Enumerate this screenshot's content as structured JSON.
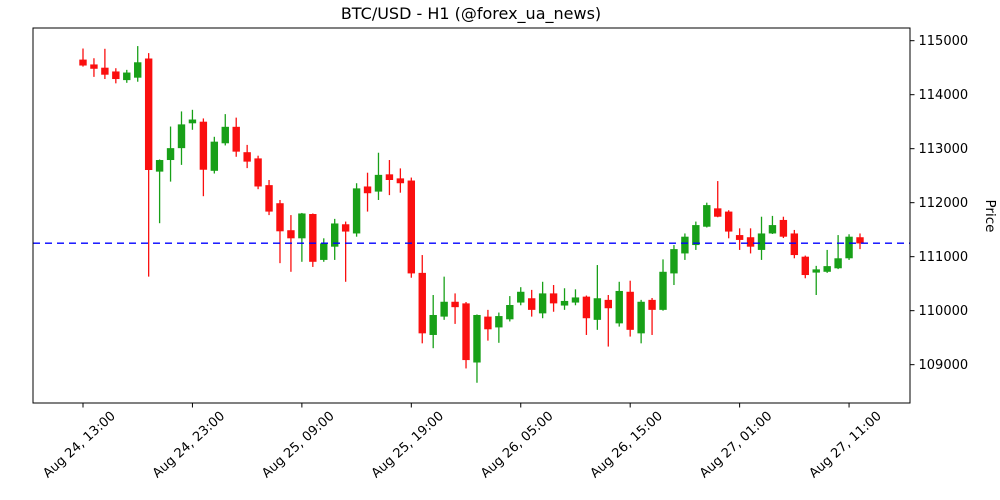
{
  "chart_data": {
    "type": "candlestick",
    "title": "BTC/USD - H1 (@forex_ua_news)",
    "ylabel": "Price",
    "timeframe": "H1",
    "grid": false,
    "y_ticks": [
      109000,
      110000,
      111000,
      112000,
      113000,
      114000,
      115000
    ],
    "y_range": [
      108290,
      115235
    ],
    "x_tick_indices": [
      0,
      10,
      20,
      30,
      40,
      50,
      60,
      70
    ],
    "x_tick_labels": [
      "Aug 24, 13:00",
      "Aug 24, 23:00",
      "Aug 25, 09:00",
      "Aug 25, 19:00",
      "Aug 26, 05:00",
      "Aug 26, 15:00",
      "Aug 27, 01:00",
      "Aug 27, 11:00"
    ],
    "hline": {
      "value": 111250,
      "color": "#0000ff",
      "style": "dashed"
    },
    "colors": {
      "up": "#18a018",
      "down": "#fa0f0f",
      "axis": "#000000",
      "background": "#ffffff"
    },
    "candles_format": [
      "open",
      "high",
      "low",
      "close"
    ],
    "candles": [
      [
        114650,
        114855,
        114520,
        114540
      ],
      [
        114560,
        114675,
        114330,
        114480
      ],
      [
        114500,
        114850,
        114290,
        114370
      ],
      [
        114430,
        114490,
        114210,
        114290
      ],
      [
        114270,
        114460,
        114220,
        114410
      ],
      [
        114315,
        114900,
        114240,
        114600
      ],
      [
        114670,
        114770,
        110630,
        112605
      ],
      [
        112575,
        112800,
        111620,
        112790
      ],
      [
        112790,
        113410,
        112390,
        113010
      ],
      [
        113010,
        113690,
        112700,
        113450
      ],
      [
        113470,
        113720,
        113350,
        113540
      ],
      [
        113500,
        113560,
        112120,
        112610
      ],
      [
        112590,
        113220,
        112540,
        113130
      ],
      [
        113100,
        113640,
        113060,
        113405
      ],
      [
        113405,
        113575,
        112850,
        112945
      ],
      [
        112935,
        113070,
        112640,
        112760
      ],
      [
        112820,
        112870,
        112250,
        112300
      ],
      [
        112325,
        112420,
        111770,
        111835
      ],
      [
        111990,
        112050,
        110880,
        111470
      ],
      [
        111490,
        111770,
        110720,
        111340
      ],
      [
        111340,
        111810,
        110905,
        111800
      ],
      [
        111790,
        111800,
        110810,
        110905
      ],
      [
        110940,
        111340,
        110905,
        111245
      ],
      [
        111185,
        111700,
        110940,
        111615
      ],
      [
        111600,
        111650,
        110535,
        111465
      ],
      [
        111430,
        112360,
        111370,
        112265
      ],
      [
        112300,
        112555,
        111835,
        112175
      ],
      [
        112205,
        112925,
        112050,
        112515
      ],
      [
        112525,
        112790,
        112140,
        112420
      ],
      [
        112450,
        112635,
        112185,
        112360
      ],
      [
        112410,
        112465,
        110610,
        110690
      ],
      [
        110700,
        111030,
        109395,
        109580
      ],
      [
        109550,
        110290,
        109305,
        109920
      ],
      [
        109890,
        110630,
        109830,
        110165
      ],
      [
        110165,
        110320,
        109755,
        110065
      ],
      [
        110135,
        110160,
        108930,
        109085
      ],
      [
        109040,
        109930,
        108665,
        109920
      ],
      [
        109890,
        110015,
        109445,
        109655
      ],
      [
        109690,
        109965,
        109405,
        109900
      ],
      [
        109840,
        110270,
        109800,
        110105
      ],
      [
        110150,
        110435,
        110100,
        110350
      ],
      [
        110230,
        110385,
        109890,
        110015
      ],
      [
        109950,
        110535,
        109860,
        110320
      ],
      [
        110320,
        110475,
        109980,
        110135
      ],
      [
        110095,
        110415,
        110015,
        110180
      ],
      [
        110150,
        110395,
        110100,
        110245
      ],
      [
        110260,
        110280,
        109550,
        109860
      ],
      [
        109830,
        110845,
        109645,
        110230
      ],
      [
        110200,
        110290,
        109335,
        110045
      ],
      [
        109765,
        110535,
        109705,
        110365
      ],
      [
        110350,
        110555,
        109520,
        109645
      ],
      [
        109580,
        110200,
        109395,
        110165
      ],
      [
        110200,
        110235,
        109550,
        110015
      ],
      [
        110015,
        110950,
        110000,
        110720
      ],
      [
        110690,
        111215,
        110475,
        111140
      ],
      [
        111060,
        111430,
        110940,
        111370
      ],
      [
        111215,
        111650,
        111125,
        111585
      ],
      [
        111555,
        112000,
        111540,
        111955
      ],
      [
        111895,
        112400,
        111730,
        111740
      ],
      [
        111835,
        111860,
        111340,
        111465
      ],
      [
        111400,
        111525,
        111125,
        111310
      ],
      [
        111360,
        111525,
        111060,
        111185
      ],
      [
        111125,
        111740,
        110940,
        111430
      ],
      [
        111430,
        111755,
        111420,
        111585
      ],
      [
        111680,
        111740,
        111345,
        111370
      ],
      [
        111430,
        111495,
        110970,
        111030
      ],
      [
        111000,
        111020,
        110600,
        110660
      ],
      [
        110705,
        110830,
        110290,
        110765
      ],
      [
        110720,
        111125,
        110700,
        110825
      ],
      [
        110785,
        111400,
        110770,
        110970
      ],
      [
        110970,
        111415,
        110940,
        111370
      ],
      [
        111360,
        111430,
        111140,
        111245
      ]
    ]
  }
}
